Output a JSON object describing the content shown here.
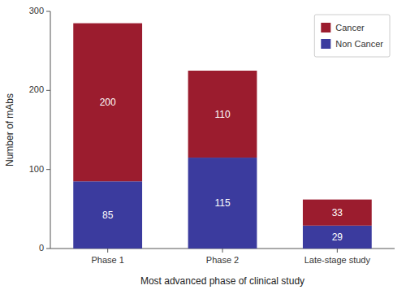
{
  "chart_data": {
    "type": "bar",
    "stacked": true,
    "data_labels": true,
    "legend": "upper right",
    "categories": [
      "Phase 1",
      "Phase 2",
      "Late-stage study"
    ],
    "series": [
      {
        "name": "Non Cancer",
        "color": "#3B3B9E",
        "values": [
          85,
          115,
          29
        ]
      },
      {
        "name": "Cancer",
        "color": "#9B1C2E",
        "values": [
          200,
          110,
          33
        ]
      }
    ],
    "xlabel": "Most advanced phase of clinical study",
    "ylabel": "Number of mAbs",
    "ylim": [
      0,
      300
    ],
    "yticks": [
      0,
      100,
      200,
      300
    ]
  }
}
